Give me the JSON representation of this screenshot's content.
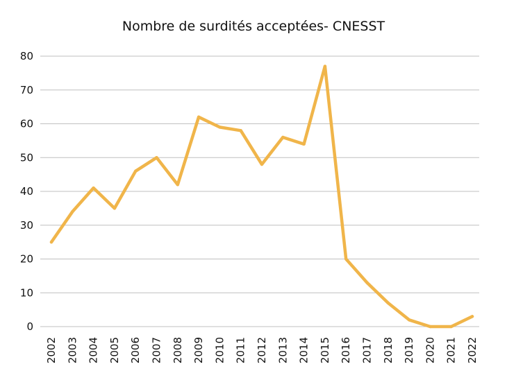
{
  "chart_data": {
    "type": "line",
    "title": "Nombre de surdités acceptées- CNESST",
    "xlabel": "",
    "ylabel": "",
    "categories": [
      "2002",
      "2003",
      "2004",
      "2005",
      "2006",
      "2007",
      "2008",
      "2009",
      "2010",
      "2011",
      "2012",
      "2013",
      "2014",
      "2015",
      "2016",
      "2017",
      "2018",
      "2019",
      "2020",
      "2021",
      "2022"
    ],
    "series": [
      {
        "values": [
          25,
          34,
          41,
          35,
          46,
          50,
          42,
          62,
          59,
          58,
          48,
          56,
          54,
          77,
          20,
          13,
          7,
          2,
          0,
          0,
          3
        ],
        "color": "#F0B54A"
      }
    ],
    "ylim": [
      0,
      80
    ],
    "yticks": [
      0,
      10,
      20,
      30,
      40,
      50,
      60,
      70,
      80
    ],
    "grid": true,
    "gridColor": "#bfbfbf",
    "legend": "none"
  }
}
